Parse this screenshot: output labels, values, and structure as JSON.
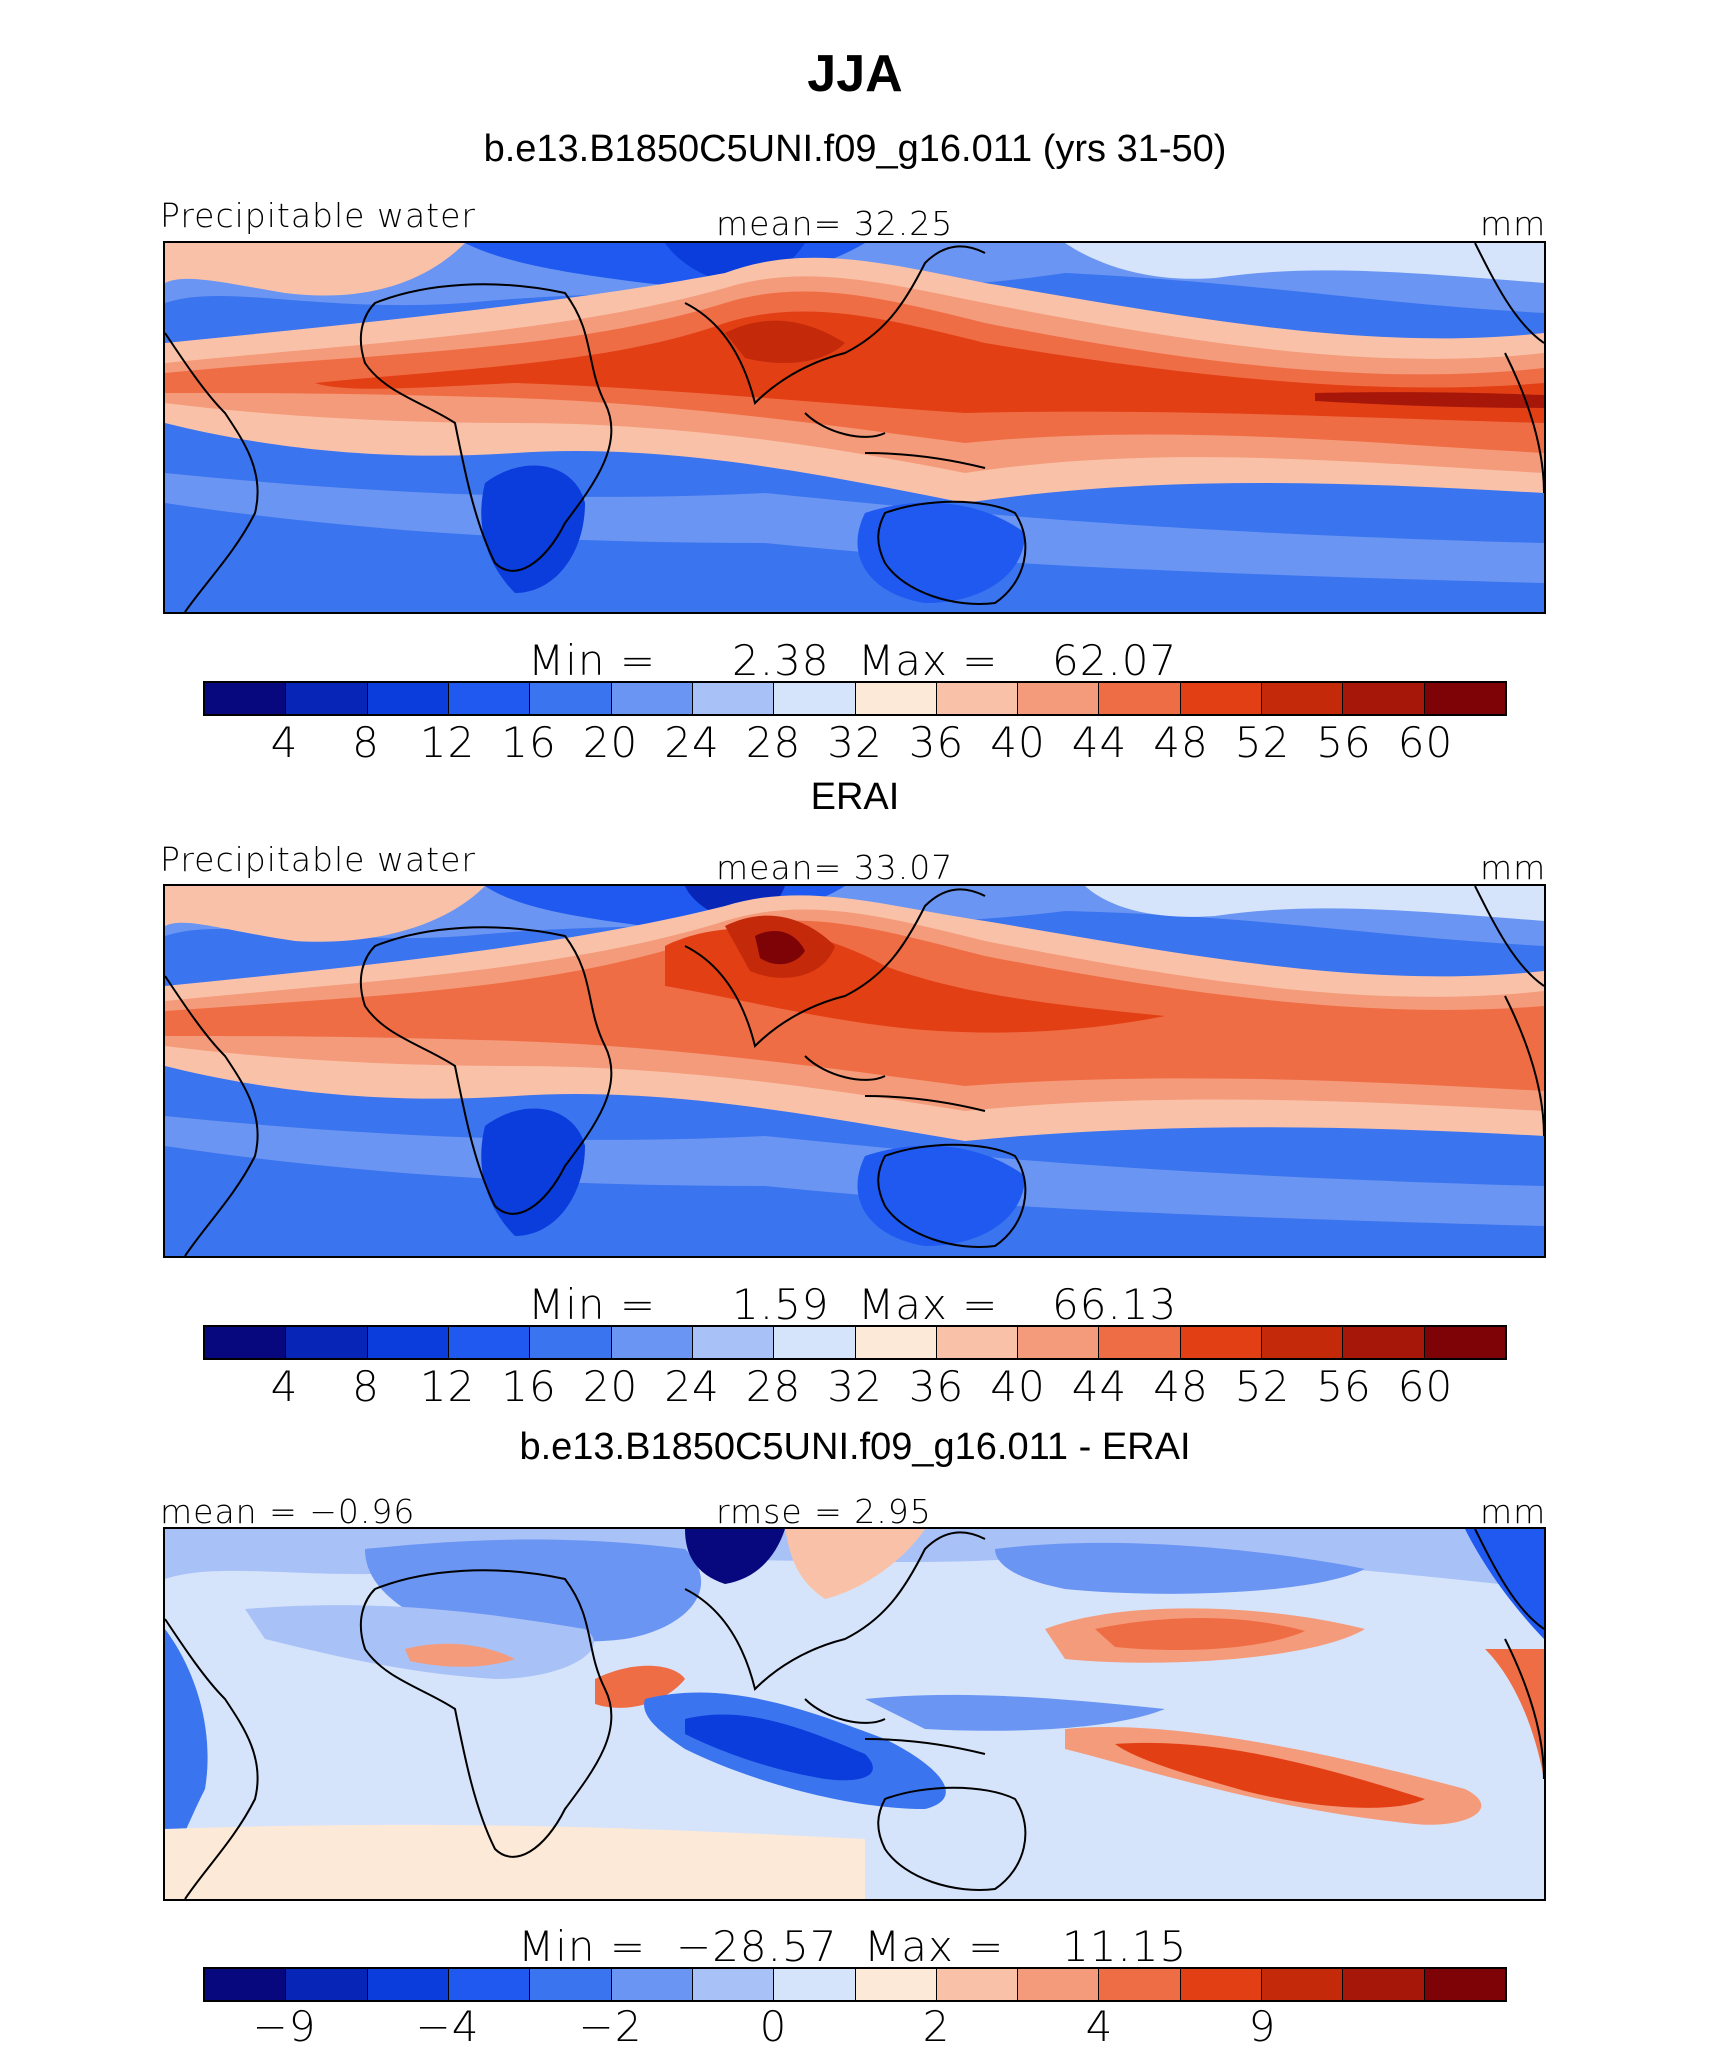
{
  "figure": {
    "title": "JJA"
  },
  "colors": {
    "abs_palette": [
      "#07077e",
      "#0725b7",
      "#0a3ddc",
      "#1f59f0",
      "#3b74ef",
      "#6a95f2",
      "#a8c1f7",
      "#d6e4fb",
      "#fde9d7",
      "#f9c2a8",
      "#f49b7b",
      "#ef6d45",
      "#e33f15",
      "#c42a0a",
      "#a6170a",
      "#7e0306"
    ],
    "diff_palette": [
      "#07077e",
      "#0725b7",
      "#0a3ddc",
      "#1f59f0",
      "#3b74ef",
      "#6a95f2",
      "#a8c1f7",
      "#d6e4fb",
      "#fde9d7",
      "#f9c2a8",
      "#f49b7b",
      "#ef6d45",
      "#e33f15",
      "#c42a0a",
      "#a6170a",
      "#7e0306"
    ]
  },
  "panels": [
    {
      "title": "b.e13.B1850C5UNI.f09_g16.011 (yrs 31-50)",
      "left_label": "Precipitable water",
      "center_label": "mean=   32.25",
      "right_label": "mm",
      "min_label": "Min  =",
      "min_value": "2.38",
      "max_label": "Max  =",
      "max_value": "62.07",
      "ticks": [
        "4",
        "8",
        "12",
        "16",
        "20",
        "24",
        "28",
        "32",
        "36",
        "40",
        "44",
        "48",
        "52",
        "56",
        "60"
      ]
    },
    {
      "title": "ERAI",
      "left_label": "Precipitable water",
      "center_label": "mean=   33.07",
      "right_label": "mm",
      "min_label": "Min  =",
      "min_value": "1.59",
      "max_label": "Max  =",
      "max_value": "66.13",
      "ticks": [
        "4",
        "8",
        "12",
        "16",
        "20",
        "24",
        "28",
        "32",
        "36",
        "40",
        "44",
        "48",
        "52",
        "56",
        "60"
      ]
    },
    {
      "title": "b.e13.B1850C5UNI.f09_g16.011 - ERAI",
      "left_label": "mean  =   −0.96",
      "center_label": "rmse  =    2.95",
      "right_label": "mm",
      "min_label": "Min  =",
      "min_value": "−28.57",
      "max_label": "Max  =",
      "max_value": "11.15",
      "ticks": [
        "−9",
        "",
        "−4",
        "",
        "−2",
        "",
        "0",
        "",
        "2",
        "",
        "4",
        "",
        "9"
      ]
    }
  ]
}
